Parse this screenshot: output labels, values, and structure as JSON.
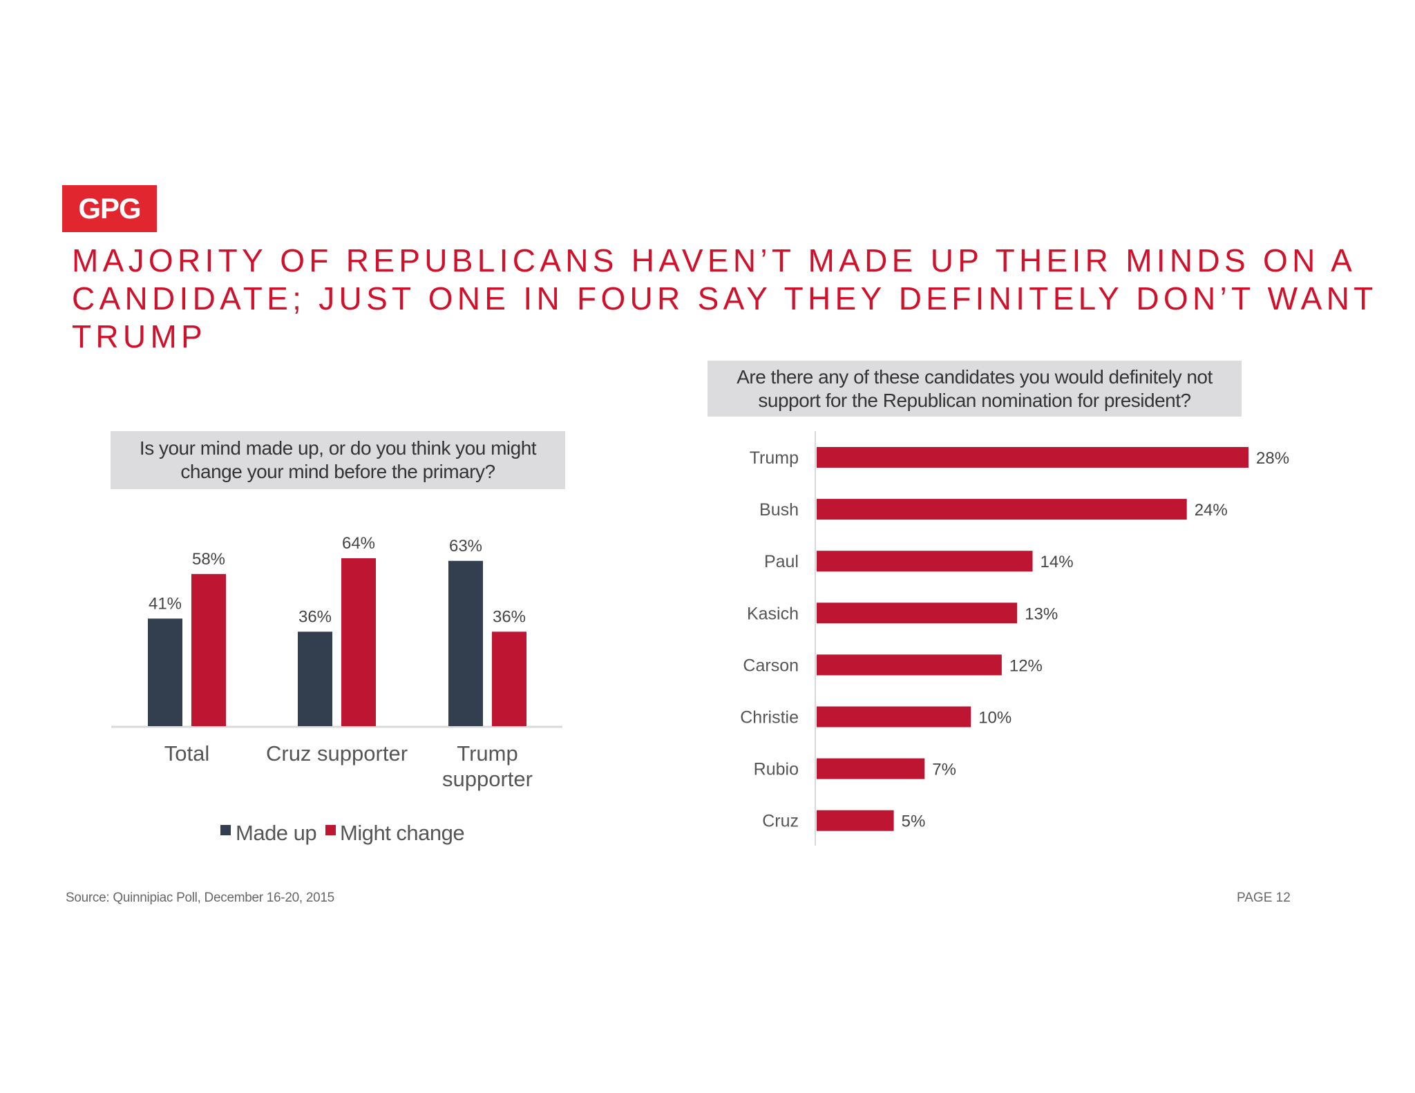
{
  "logo": "GPG",
  "title": "MAJORITY OF REPUBLICANS HAVEN’T MADE UP THEIR MINDS ON A CANDIDATE; JUST ONE IN FOUR SAY THEY DEFINITELY DON’T WANT TRUMP",
  "footer": {
    "source": "Source: Quinnipiac Poll, December 16-20, 2015",
    "page": "PAGE 12"
  },
  "colors": {
    "made_up": "#333f4f",
    "might_change": "#be1632",
    "title": "#d0112b"
  },
  "chart_data": [
    {
      "type": "bar",
      "title": "Is your mind made up, or do you think you might change your mind before the primary?",
      "categories": [
        [
          "Total"
        ],
        [
          "Cruz supporter"
        ],
        [
          "Trump",
          "supporter"
        ]
      ],
      "series": [
        {
          "name": "Made up",
          "values": [
            41,
            36,
            63
          ],
          "labels": [
            "41%",
            "36%",
            "63%"
          ]
        },
        {
          "name": "Might change",
          "values": [
            58,
            64,
            36
          ],
          "labels": [
            "58%",
            "64%",
            "36%"
          ]
        }
      ],
      "ylim": [
        0,
        64
      ],
      "grid": false,
      "legend": "bottom"
    },
    {
      "type": "bar",
      "orientation": "horizontal",
      "title": "Are there any of these candidates you would definitely not support for the Republican nomination for president?",
      "categories": [
        "Trump",
        "Bush",
        "Paul",
        "Kasich",
        "Carson",
        "Christie",
        "Rubio",
        "Cruz"
      ],
      "values": [
        28,
        24,
        14,
        13,
        12,
        10,
        7,
        5
      ],
      "labels": [
        "28%",
        "24%",
        "14%",
        "13%",
        "12%",
        "10%",
        "7%",
        "5%"
      ],
      "xlim": [
        0,
        28
      ],
      "grid": false
    }
  ]
}
